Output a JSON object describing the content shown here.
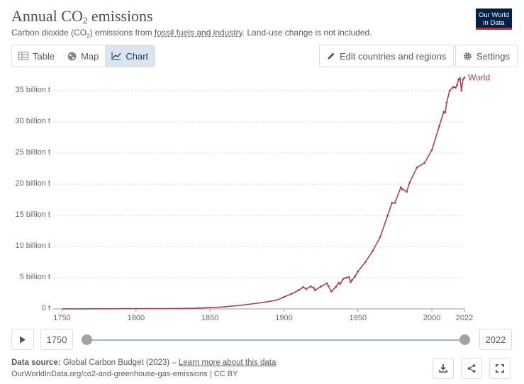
{
  "header": {
    "title_main": "Annual CO",
    "title_sub": "2",
    "title_rest": " emissions",
    "subtitle_a": "Carbon dioxide (CO",
    "subtitle_sub": "2",
    "subtitle_b": ") emissions from ",
    "subtitle_link": "fossil fuels and industry",
    "subtitle_c": ". Land-use change is not included.",
    "logo_line1": "Our World",
    "logo_line2": "in Data"
  },
  "tabs": [
    {
      "label": "Table",
      "icon": "table-icon"
    },
    {
      "label": "Map",
      "icon": "globe-icon"
    },
    {
      "label": "Chart",
      "icon": "line-chart-icon",
      "active": true
    }
  ],
  "toolbar": {
    "edit_label": "Edit countries and regions",
    "settings_label": "Settings"
  },
  "timeline": {
    "start_year": "1750",
    "end_year": "2022"
  },
  "footer": {
    "source_label": "Data source:",
    "source_text": " Global Carbon Budget (2023) – ",
    "learn_more": "Learn more about this data",
    "url_line": "OurWorldInData.org/co2-and-greenhouse-gas-emissions | CC BY"
  },
  "colors": {
    "series": "#b13f51",
    "accent": "#002147"
  },
  "chart_data": {
    "type": "line",
    "title": "Annual CO₂ emissions",
    "xlabel": "",
    "ylabel": "",
    "xlim": [
      1750,
      2022
    ],
    "ylim": [
      0,
      35
    ],
    "grid": true,
    "y_ticks": [
      0,
      5,
      10,
      15,
      20,
      25,
      30,
      35
    ],
    "y_tick_labels": [
      "0 t",
      "5 billion t",
      "10 billion t",
      "15 billion t",
      "20 billion t",
      "25 billion t",
      "30 billion t",
      "35 billion t"
    ],
    "x_ticks": [
      1750,
      1800,
      1850,
      1900,
      1950,
      2000,
      2022
    ],
    "x_tick_labels": [
      "1750",
      "1800",
      "1850",
      "1900",
      "1950",
      "2000",
      "2022"
    ],
    "series": [
      {
        "name": "World",
        "x": [
          1750,
          1760,
          1770,
          1780,
          1790,
          1800,
          1810,
          1820,
          1830,
          1840,
          1850,
          1855,
          1860,
          1865,
          1870,
          1875,
          1880,
          1885,
          1890,
          1895,
          1900,
          1905,
          1910,
          1913,
          1915,
          1918,
          1920,
          1921,
          1925,
          1929,
          1930,
          1932,
          1935,
          1937,
          1938,
          1940,
          1942,
          1944,
          1945,
          1946,
          1948,
          1950,
          1955,
          1960,
          1965,
          1970,
          1973,
          1975,
          1979,
          1980,
          1983,
          1985,
          1990,
          1995,
          2000,
          2005,
          2008,
          2009,
          2010,
          2012,
          2014,
          2015,
          2016,
          2017,
          2018,
          2019,
          2020,
          2021,
          2022
        ],
        "values": [
          0.01,
          0.01,
          0.02,
          0.02,
          0.03,
          0.03,
          0.04,
          0.05,
          0.07,
          0.1,
          0.2,
          0.25,
          0.35,
          0.45,
          0.55,
          0.7,
          0.85,
          1.0,
          1.2,
          1.4,
          1.9,
          2.4,
          3.0,
          3.5,
          3.2,
          3.6,
          3.4,
          3.0,
          3.6,
          4.1,
          3.7,
          2.8,
          3.5,
          4.2,
          4.0,
          4.8,
          5.0,
          5.1,
          4.3,
          4.6,
          5.2,
          6.0,
          7.5,
          9.3,
          11.5,
          14.9,
          17.0,
          17.0,
          19.5,
          19.2,
          18.8,
          20.3,
          22.7,
          23.4,
          25.5,
          29.3,
          31.6,
          31.5,
          33.1,
          35.0,
          35.5,
          35.6,
          35.5,
          35.9,
          36.8,
          37.0,
          35.0,
          36.8,
          37.1
        ]
      }
    ]
  }
}
